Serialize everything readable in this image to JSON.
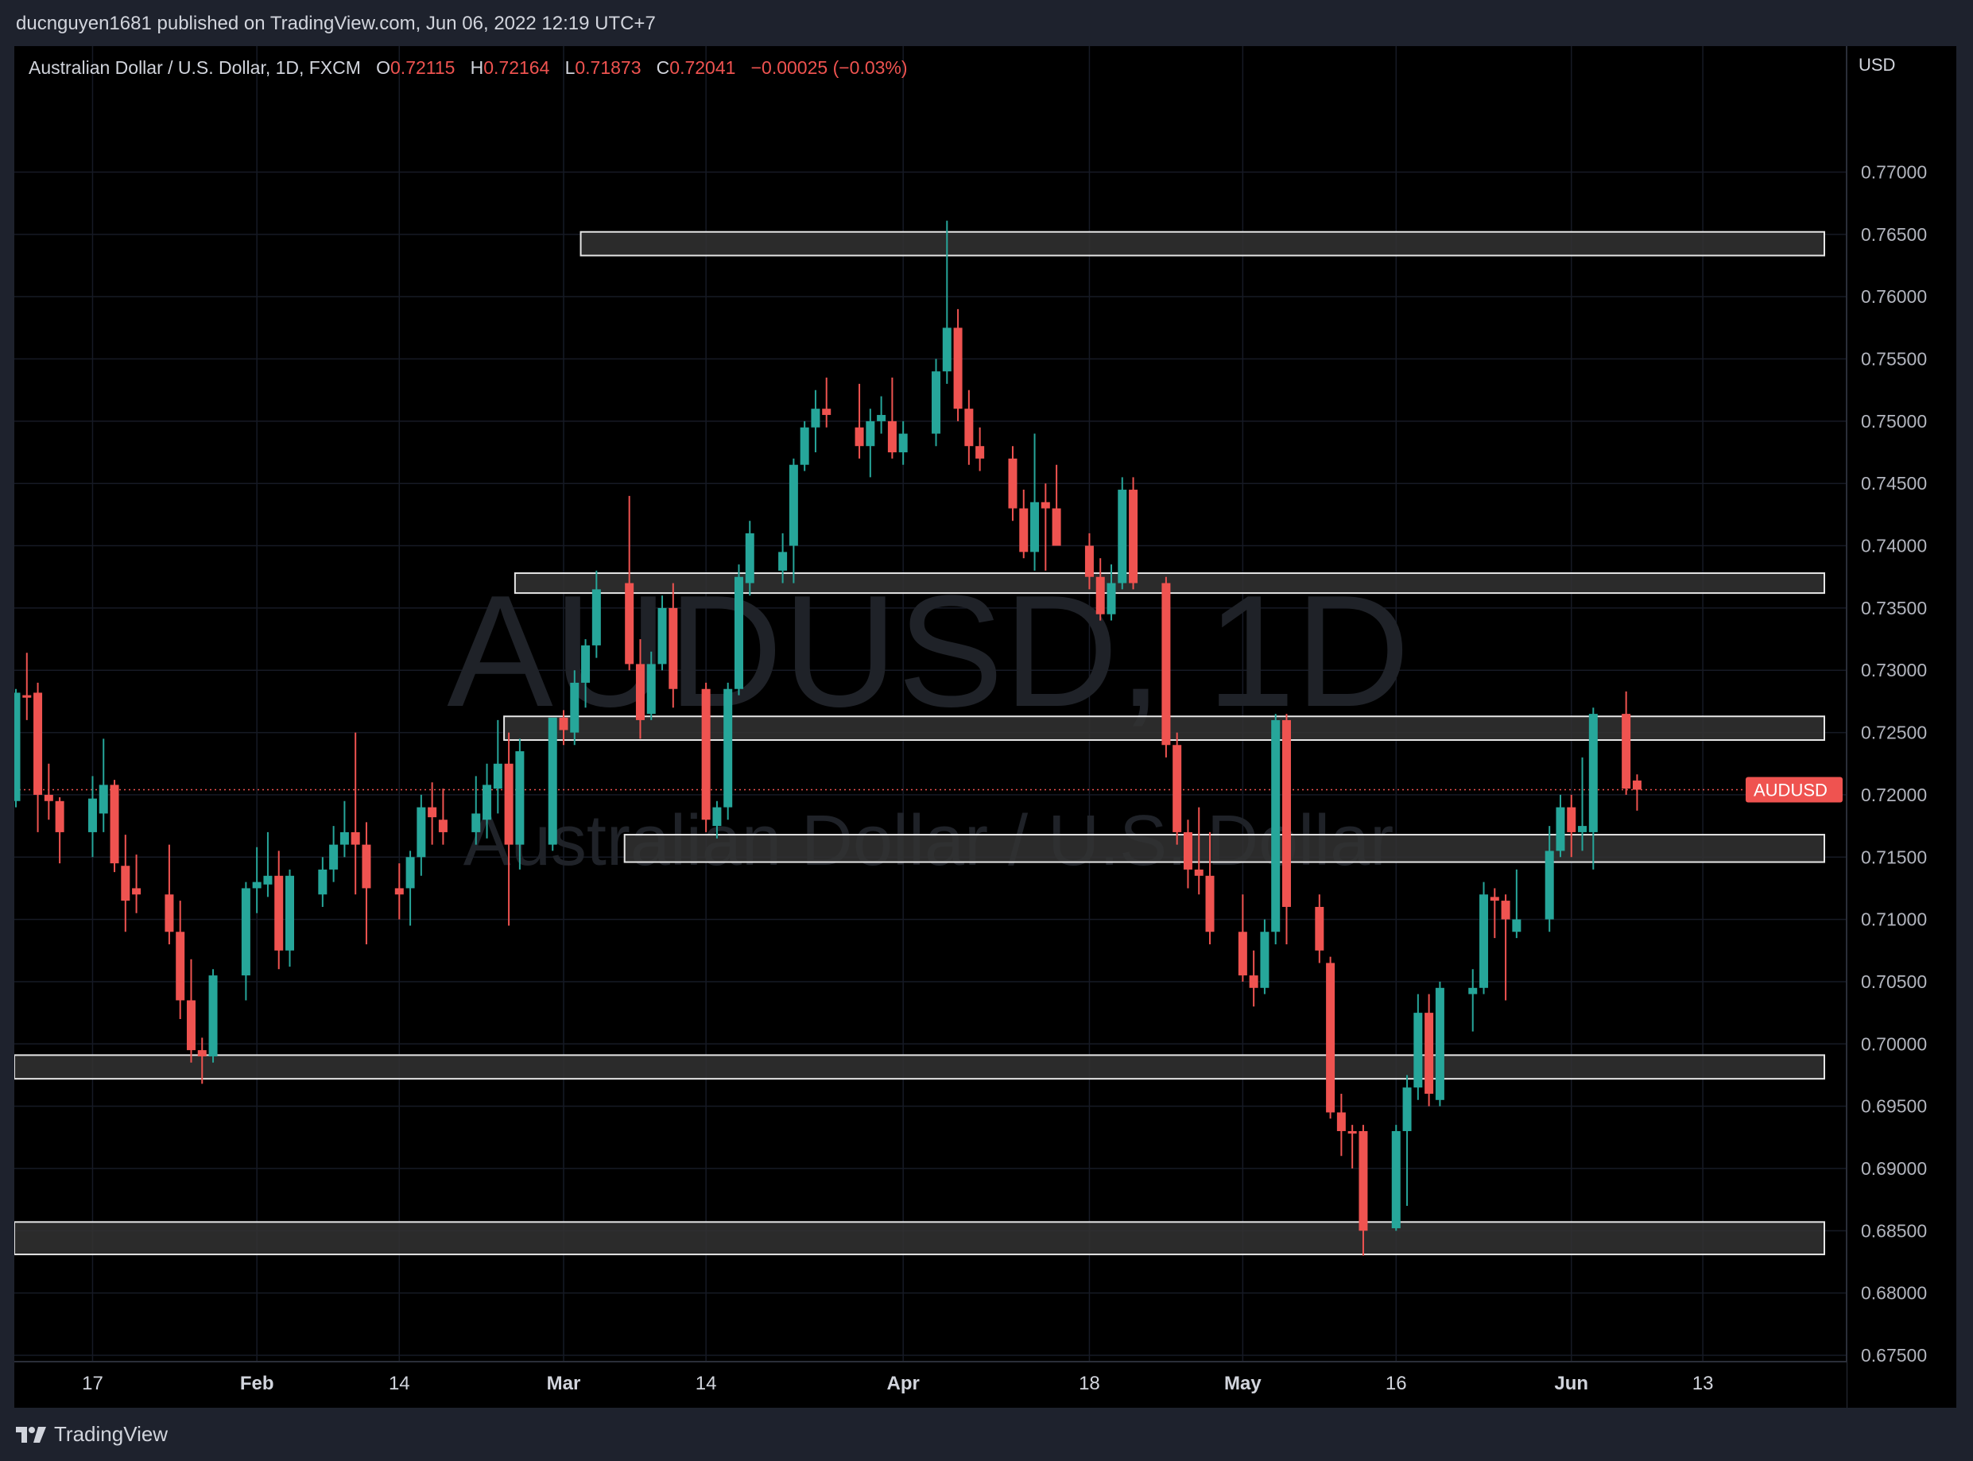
{
  "header": {
    "published": "ducnguyen1681 published on TradingView.com, Jun 06, 2022 12:19 UTC+7"
  },
  "legend": {
    "symbol_desc": "Australian Dollar / U.S. Dollar, 1D, FXCM",
    "o_key": "O",
    "o_val": "0.72115",
    "h_key": "H",
    "h_val": "0.72164",
    "l_key": "L",
    "l_val": "0.71873",
    "c_key": "C",
    "c_val": "0.72041",
    "change": "−0.00025 (−0.03%)"
  },
  "watermark": {
    "symbol": "AUDUSD, 1D",
    "description": "Australian Dollar / U.S. Dollar"
  },
  "price_axis": {
    "currency": "USD"
  },
  "last_price_label": "AUDUSD",
  "footer": {
    "brand": "TradingView"
  },
  "colors": {
    "up": "#26a69a",
    "down": "#ef5350",
    "background": "#000000",
    "grid": "#161a25",
    "axis_text": "#b2b5be",
    "zone_fill": "#333333",
    "zone_stroke": "#e6e6e6"
  },
  "chart_data": {
    "type": "candlestick",
    "symbol": "AUDUSD",
    "ylim": [
      0.675,
      0.7775
    ],
    "y_ticks": [
      "0.67500",
      "0.68000",
      "0.68500",
      "0.69000",
      "0.69500",
      "0.70000",
      "0.70500",
      "0.71000",
      "0.71500",
      "0.72000",
      "0.72500",
      "0.73000",
      "0.73500",
      "0.74000",
      "0.74500",
      "0.75000",
      "0.75500",
      "0.76000",
      "0.76500",
      "0.77000"
    ],
    "x_ticks": [
      {
        "label": "17",
        "date": "2022-01-17",
        "bold": false
      },
      {
        "label": "Feb",
        "date": "2022-02-01",
        "bold": true
      },
      {
        "label": "14",
        "date": "2022-02-14",
        "bold": false
      },
      {
        "label": "Mar",
        "date": "2022-03-01",
        "bold": true
      },
      {
        "label": "14",
        "date": "2022-03-14",
        "bold": false
      },
      {
        "label": "Apr",
        "date": "2022-04-01",
        "bold": true
      },
      {
        "label": "18",
        "date": "2022-04-18",
        "bold": false
      },
      {
        "label": "May",
        "date": "2022-05-02",
        "bold": true
      },
      {
        "label": "16",
        "date": "2022-05-16",
        "bold": false
      },
      {
        "label": "Jun",
        "date": "2022-06-01",
        "bold": true
      },
      {
        "label": "13",
        "date": "2022-06-13",
        "bold": false
      }
    ],
    "x_range": [
      "2022-01-10",
      "2022-06-14"
    ],
    "last_price": 0.72041,
    "zones": [
      {
        "from": "2022-03-03",
        "to": "2022-06-14",
        "low": 0.7633,
        "high": 0.7652
      },
      {
        "from": "2022-02-25",
        "to": "2022-06-14",
        "low": 0.7362,
        "high": 0.7378
      },
      {
        "from": "2022-02-24",
        "to": "2022-06-14",
        "low": 0.7244,
        "high": 0.7263
      },
      {
        "from": "2022-03-07",
        "to": "2022-06-14",
        "low": 0.7146,
        "high": 0.7168
      },
      {
        "from": "2022-01-10",
        "to": "2022-06-14",
        "low": 0.6972,
        "high": 0.6991
      },
      {
        "from": "2022-01-10",
        "to": "2022-06-14",
        "low": 0.6831,
        "high": 0.6857
      }
    ],
    "candles": [
      {
        "date": "2022-01-10",
        "open": 0.7195,
        "high": 0.7285,
        "low": 0.719,
        "close": 0.7282
      },
      {
        "date": "2022-01-11",
        "open": 0.728,
        "high": 0.7314,
        "low": 0.726,
        "close": 0.7278
      },
      {
        "date": "2022-01-12",
        "open": 0.7282,
        "high": 0.729,
        "low": 0.717,
        "close": 0.72
      },
      {
        "date": "2022-01-13",
        "open": 0.72,
        "high": 0.7225,
        "low": 0.718,
        "close": 0.7195
      },
      {
        "date": "2022-01-14",
        "open": 0.7195,
        "high": 0.7198,
        "low": 0.7145,
        "close": 0.717
      },
      {
        "date": "2022-01-17",
        "open": 0.717,
        "high": 0.7215,
        "low": 0.715,
        "close": 0.7197
      },
      {
        "date": "2022-01-18",
        "open": 0.7185,
        "high": 0.7245,
        "low": 0.717,
        "close": 0.7208
      },
      {
        "date": "2022-01-19",
        "open": 0.7208,
        "high": 0.7212,
        "low": 0.7138,
        "close": 0.7145
      },
      {
        "date": "2022-01-20",
        "open": 0.7143,
        "high": 0.7168,
        "low": 0.709,
        "close": 0.7115
      },
      {
        "date": "2022-01-21",
        "open": 0.7125,
        "high": 0.7152,
        "low": 0.7105,
        "close": 0.712
      },
      {
        "date": "2022-01-24",
        "open": 0.712,
        "high": 0.716,
        "low": 0.708,
        "close": 0.709
      },
      {
        "date": "2022-01-25",
        "open": 0.709,
        "high": 0.7115,
        "low": 0.702,
        "close": 0.7035
      },
      {
        "date": "2022-01-26",
        "open": 0.7035,
        "high": 0.7068,
        "low": 0.6985,
        "close": 0.6995
      },
      {
        "date": "2022-01-27",
        "open": 0.6995,
        "high": 0.7005,
        "low": 0.6968,
        "close": 0.699
      },
      {
        "date": "2022-01-28",
        "open": 0.699,
        "high": 0.706,
        "low": 0.6985,
        "close": 0.7055
      },
      {
        "date": "2022-01-31",
        "open": 0.7055,
        "high": 0.713,
        "low": 0.7035,
        "close": 0.7125
      },
      {
        "date": "2022-02-01",
        "open": 0.7125,
        "high": 0.7158,
        "low": 0.7105,
        "close": 0.713
      },
      {
        "date": "2022-02-02",
        "open": 0.7128,
        "high": 0.717,
        "low": 0.7118,
        "close": 0.7135
      },
      {
        "date": "2022-02-03",
        "open": 0.7135,
        "high": 0.7155,
        "low": 0.706,
        "close": 0.7075
      },
      {
        "date": "2022-02-04",
        "open": 0.7075,
        "high": 0.714,
        "low": 0.7062,
        "close": 0.7135
      },
      {
        "date": "2022-02-07",
        "open": 0.712,
        "high": 0.715,
        "low": 0.711,
        "close": 0.714
      },
      {
        "date": "2022-02-08",
        "open": 0.714,
        "high": 0.7175,
        "low": 0.713,
        "close": 0.716
      },
      {
        "date": "2022-02-09",
        "open": 0.716,
        "high": 0.7195,
        "low": 0.715,
        "close": 0.717
      },
      {
        "date": "2022-02-10",
        "open": 0.717,
        "high": 0.725,
        "low": 0.712,
        "close": 0.716
      },
      {
        "date": "2022-02-11",
        "open": 0.716,
        "high": 0.7178,
        "low": 0.708,
        "close": 0.7125
      },
      {
        "date": "2022-02-14",
        "open": 0.7125,
        "high": 0.7145,
        "low": 0.71,
        "close": 0.712
      },
      {
        "date": "2022-02-15",
        "open": 0.7125,
        "high": 0.7155,
        "low": 0.7095,
        "close": 0.715
      },
      {
        "date": "2022-02-16",
        "open": 0.715,
        "high": 0.72,
        "low": 0.7135,
        "close": 0.719
      },
      {
        "date": "2022-02-17",
        "open": 0.719,
        "high": 0.721,
        "low": 0.716,
        "close": 0.7182
      },
      {
        "date": "2022-02-18",
        "open": 0.718,
        "high": 0.7205,
        "low": 0.716,
        "close": 0.717
      },
      {
        "date": "2022-02-21",
        "open": 0.717,
        "high": 0.7215,
        "low": 0.716,
        "close": 0.7185
      },
      {
        "date": "2022-02-22",
        "open": 0.718,
        "high": 0.7225,
        "low": 0.7165,
        "close": 0.7208
      },
      {
        "date": "2022-02-23",
        "open": 0.7205,
        "high": 0.726,
        "low": 0.7185,
        "close": 0.7225
      },
      {
        "date": "2022-02-24",
        "open": 0.7225,
        "high": 0.725,
        "low": 0.7095,
        "close": 0.716
      },
      {
        "date": "2022-02-25",
        "open": 0.716,
        "high": 0.7245,
        "low": 0.714,
        "close": 0.7235
      },
      {
        "date": "2022-02-28",
        "open": 0.716,
        "high": 0.726,
        "low": 0.7155,
        "close": 0.7262
      },
      {
        "date": "2022-03-01",
        "open": 0.7262,
        "high": 0.7268,
        "low": 0.724,
        "close": 0.7252
      },
      {
        "date": "2022-03-02",
        "open": 0.725,
        "high": 0.73,
        "low": 0.724,
        "close": 0.729
      },
      {
        "date": "2022-03-03",
        "open": 0.729,
        "high": 0.7325,
        "low": 0.727,
        "close": 0.732
      },
      {
        "date": "2022-03-04",
        "open": 0.732,
        "high": 0.738,
        "low": 0.731,
        "close": 0.7365
      },
      {
        "date": "2022-03-07",
        "open": 0.737,
        "high": 0.744,
        "low": 0.73,
        "close": 0.7305
      },
      {
        "date": "2022-03-08",
        "open": 0.7305,
        "high": 0.7325,
        "low": 0.7245,
        "close": 0.726
      },
      {
        "date": "2022-03-09",
        "open": 0.7265,
        "high": 0.7315,
        "low": 0.726,
        "close": 0.7305
      },
      {
        "date": "2022-03-10",
        "open": 0.7305,
        "high": 0.736,
        "low": 0.73,
        "close": 0.735
      },
      {
        "date": "2022-03-11",
        "open": 0.735,
        "high": 0.737,
        "low": 0.727,
        "close": 0.7285
      },
      {
        "date": "2022-03-14",
        "open": 0.7285,
        "high": 0.729,
        "low": 0.717,
        "close": 0.718
      },
      {
        "date": "2022-03-15",
        "open": 0.7175,
        "high": 0.7195,
        "low": 0.7165,
        "close": 0.719
      },
      {
        "date": "2022-03-16",
        "open": 0.719,
        "high": 0.729,
        "low": 0.718,
        "close": 0.7285
      },
      {
        "date": "2022-03-17",
        "open": 0.7285,
        "high": 0.7385,
        "low": 0.728,
        "close": 0.7375
      },
      {
        "date": "2022-03-18",
        "open": 0.737,
        "high": 0.742,
        "low": 0.736,
        "close": 0.741
      },
      {
        "date": "2022-03-21",
        "open": 0.738,
        "high": 0.741,
        "low": 0.737,
        "close": 0.7395
      },
      {
        "date": "2022-03-22",
        "open": 0.74,
        "high": 0.747,
        "low": 0.737,
        "close": 0.7465
      },
      {
        "date": "2022-03-23",
        "open": 0.7465,
        "high": 0.75,
        "low": 0.746,
        "close": 0.7495
      },
      {
        "date": "2022-03-24",
        "open": 0.7495,
        "high": 0.7525,
        "low": 0.7475,
        "close": 0.751
      },
      {
        "date": "2022-03-25",
        "open": 0.751,
        "high": 0.7535,
        "low": 0.7495,
        "close": 0.7505
      },
      {
        "date": "2022-03-28",
        "open": 0.7495,
        "high": 0.753,
        "low": 0.747,
        "close": 0.748
      },
      {
        "date": "2022-03-29",
        "open": 0.748,
        "high": 0.751,
        "low": 0.7455,
        "close": 0.75
      },
      {
        "date": "2022-03-30",
        "open": 0.75,
        "high": 0.752,
        "low": 0.749,
        "close": 0.7505
      },
      {
        "date": "2022-03-31",
        "open": 0.75,
        "high": 0.7535,
        "low": 0.747,
        "close": 0.7475
      },
      {
        "date": "2022-04-01",
        "open": 0.7475,
        "high": 0.75,
        "low": 0.7465,
        "close": 0.749
      },
      {
        "date": "2022-04-04",
        "open": 0.749,
        "high": 0.755,
        "low": 0.748,
        "close": 0.754
      },
      {
        "date": "2022-04-05",
        "open": 0.754,
        "high": 0.7661,
        "low": 0.753,
        "close": 0.7575
      },
      {
        "date": "2022-04-06",
        "open": 0.7575,
        "high": 0.759,
        "low": 0.75,
        "close": 0.751
      },
      {
        "date": "2022-04-07",
        "open": 0.751,
        "high": 0.7525,
        "low": 0.7465,
        "close": 0.748
      },
      {
        "date": "2022-04-08",
        "open": 0.748,
        "high": 0.7495,
        "low": 0.746,
        "close": 0.747
      },
      {
        "date": "2022-04-11",
        "open": 0.747,
        "high": 0.748,
        "low": 0.742,
        "close": 0.743
      },
      {
        "date": "2022-04-12",
        "open": 0.743,
        "high": 0.7445,
        "low": 0.739,
        "close": 0.7395
      },
      {
        "date": "2022-04-13",
        "open": 0.7395,
        "high": 0.749,
        "low": 0.738,
        "close": 0.7435
      },
      {
        "date": "2022-04-14",
        "open": 0.7435,
        "high": 0.745,
        "low": 0.738,
        "close": 0.743
      },
      {
        "date": "2022-04-15",
        "open": 0.743,
        "high": 0.7465,
        "low": 0.741,
        "close": 0.74
      },
      {
        "date": "2022-04-18",
        "open": 0.74,
        "high": 0.741,
        "low": 0.7365,
        "close": 0.7375
      },
      {
        "date": "2022-04-19",
        "open": 0.7375,
        "high": 0.739,
        "low": 0.734,
        "close": 0.7345
      },
      {
        "date": "2022-04-20",
        "open": 0.7345,
        "high": 0.7385,
        "low": 0.734,
        "close": 0.737
      },
      {
        "date": "2022-04-21",
        "open": 0.737,
        "high": 0.7455,
        "low": 0.7365,
        "close": 0.7445
      },
      {
        "date": "2022-04-22",
        "open": 0.7445,
        "high": 0.7455,
        "low": 0.7365,
        "close": 0.737
      },
      {
        "date": "2022-04-25",
        "open": 0.737,
        "high": 0.7375,
        "low": 0.723,
        "close": 0.724
      },
      {
        "date": "2022-04-26",
        "open": 0.724,
        "high": 0.725,
        "low": 0.716,
        "close": 0.717
      },
      {
        "date": "2022-04-27",
        "open": 0.717,
        "high": 0.718,
        "low": 0.7125,
        "close": 0.714
      },
      {
        "date": "2022-04-28",
        "open": 0.714,
        "high": 0.719,
        "low": 0.712,
        "close": 0.7135
      },
      {
        "date": "2022-04-29",
        "open": 0.7135,
        "high": 0.717,
        "low": 0.708,
        "close": 0.709
      },
      {
        "date": "2022-05-02",
        "open": 0.709,
        "high": 0.712,
        "low": 0.705,
        "close": 0.7055
      },
      {
        "date": "2022-05-03",
        "open": 0.7055,
        "high": 0.7075,
        "low": 0.703,
        "close": 0.7045
      },
      {
        "date": "2022-05-04",
        "open": 0.7045,
        "high": 0.71,
        "low": 0.704,
        "close": 0.709
      },
      {
        "date": "2022-05-05",
        "open": 0.709,
        "high": 0.7265,
        "low": 0.708,
        "close": 0.726
      },
      {
        "date": "2022-05-06",
        "open": 0.726,
        "high": 0.7265,
        "low": 0.708,
        "close": 0.711
      },
      {
        "date": "2022-05-09",
        "open": 0.711,
        "high": 0.712,
        "low": 0.7065,
        "close": 0.7075
      },
      {
        "date": "2022-05-10",
        "open": 0.7065,
        "high": 0.707,
        "low": 0.694,
        "close": 0.6945
      },
      {
        "date": "2022-05-11",
        "open": 0.6945,
        "high": 0.696,
        "low": 0.691,
        "close": 0.693
      },
      {
        "date": "2022-05-12",
        "open": 0.693,
        "high": 0.6935,
        "low": 0.69,
        "close": 0.6928
      },
      {
        "date": "2022-05-13",
        "open": 0.693,
        "high": 0.6935,
        "low": 0.683,
        "close": 0.685
      },
      {
        "date": "2022-05-16",
        "open": 0.6852,
        "high": 0.6935,
        "low": 0.685,
        "close": 0.693
      },
      {
        "date": "2022-05-17",
        "open": 0.693,
        "high": 0.6975,
        "low": 0.687,
        "close": 0.6965
      },
      {
        "date": "2022-05-18",
        "open": 0.6965,
        "high": 0.704,
        "low": 0.6955,
        "close": 0.7025
      },
      {
        "date": "2022-05-19",
        "open": 0.7025,
        "high": 0.704,
        "low": 0.695,
        "close": 0.696
      },
      {
        "date": "2022-05-20",
        "open": 0.6955,
        "high": 0.705,
        "low": 0.695,
        "close": 0.7045
      },
      {
        "date": "2022-05-23",
        "open": 0.704,
        "high": 0.706,
        "low": 0.701,
        "close": 0.7045
      },
      {
        "date": "2022-05-24",
        "open": 0.7045,
        "high": 0.713,
        "low": 0.704,
        "close": 0.712
      },
      {
        "date": "2022-05-25",
        "open": 0.7118,
        "high": 0.7125,
        "low": 0.7085,
        "close": 0.7115
      },
      {
        "date": "2022-05-26",
        "open": 0.7115,
        "high": 0.712,
        "low": 0.7035,
        "close": 0.71
      },
      {
        "date": "2022-05-27",
        "open": 0.709,
        "high": 0.714,
        "low": 0.7085,
        "close": 0.71
      },
      {
        "date": "2022-05-30",
        "open": 0.71,
        "high": 0.7175,
        "low": 0.709,
        "close": 0.7155
      },
      {
        "date": "2022-05-31",
        "open": 0.7155,
        "high": 0.72,
        "low": 0.715,
        "close": 0.719
      },
      {
        "date": "2022-06-01",
        "open": 0.719,
        "high": 0.72,
        "low": 0.715,
        "close": 0.717
      },
      {
        "date": "2022-06-02",
        "open": 0.717,
        "high": 0.723,
        "low": 0.7155,
        "close": 0.7175
      },
      {
        "date": "2022-06-03",
        "open": 0.717,
        "high": 0.727,
        "low": 0.714,
        "close": 0.7265
      },
      {
        "date": "2022-06-06",
        "open": 0.7265,
        "high": 0.7283,
        "low": 0.72,
        "close": 0.7205
      },
      {
        "date": "2022-06-07",
        "open": 0.72115,
        "high": 0.72164,
        "low": 0.71873,
        "close": 0.72041
      }
    ]
  }
}
